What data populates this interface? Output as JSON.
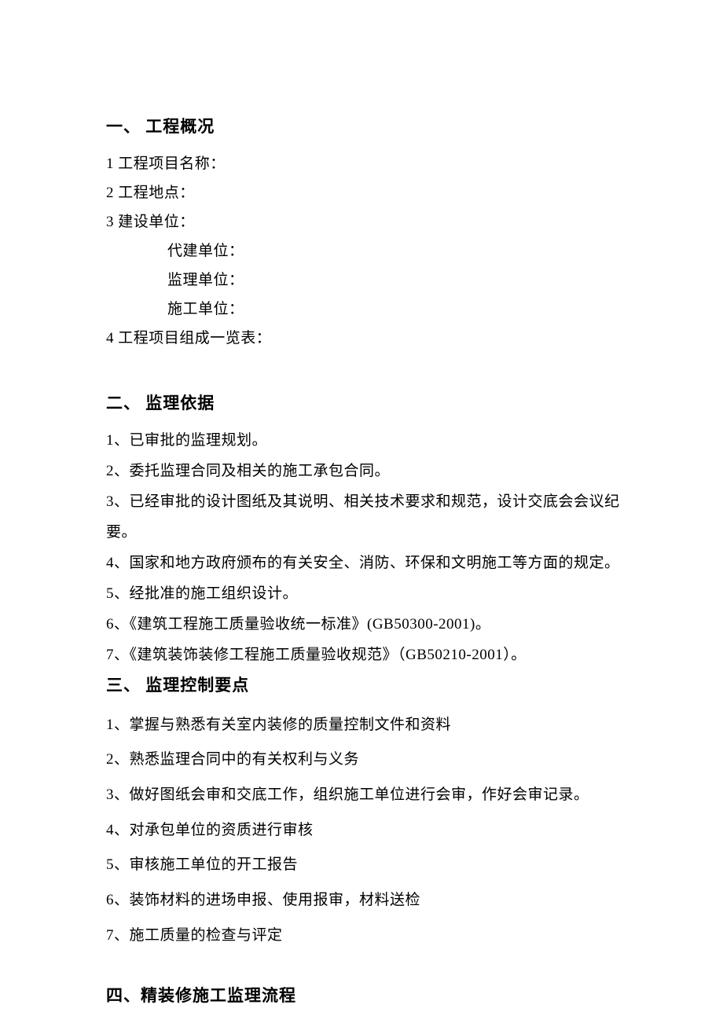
{
  "document": {
    "background_color": "#ffffff",
    "text_color": "#000000",
    "font_family": "SimSun",
    "heading_fontsize": 21,
    "body_fontsize": 19,
    "section1": {
      "heading": "一、 工程概况",
      "lines": [
        "1 工程项目名称：",
        "2 工程地点：",
        "3 建设单位："
      ],
      "indented_lines": [
        "代建单位：",
        "监理单位：",
        "施工单位："
      ],
      "line4": "4 工程项目组成一览表："
    },
    "section2": {
      "heading": "二、 监理依据",
      "items": [
        "1、已审批的监理规划。",
        "2、委托监理合同及相关的施工承包合同。",
        "3、已经审批的设计图纸及其说明、相关技术要求和规范，设计交底会会议纪要。",
        "4、国家和地方政府颁布的有关安全、消防、环保和文明施工等方面的规定。",
        "5、经批准的施工组织设计。",
        "6、《建筑工程施工质量验收统一标准》(GB50300-2001)。",
        "7、《建筑装饰装修工程施工质量验收规范》（GB50210-2001）。"
      ]
    },
    "section3": {
      "heading": "三、 监理控制要点",
      "items": [
        "1、掌握与熟悉有关室内装修的质量控制文件和资料",
        "2、熟悉监理合同中的有关权利与义务",
        "3、做好图纸会审和交底工作，组织施工单位进行会审，作好会审记录。",
        "4、对承包单位的资质进行审核",
        "5、审核施工单位的开工报告",
        "6、装饰材料的进场申报、使用报审，材料送检",
        "7、施工质量的检查与评定"
      ]
    },
    "section4": {
      "heading": "四、精装修施工监理流程"
    }
  }
}
